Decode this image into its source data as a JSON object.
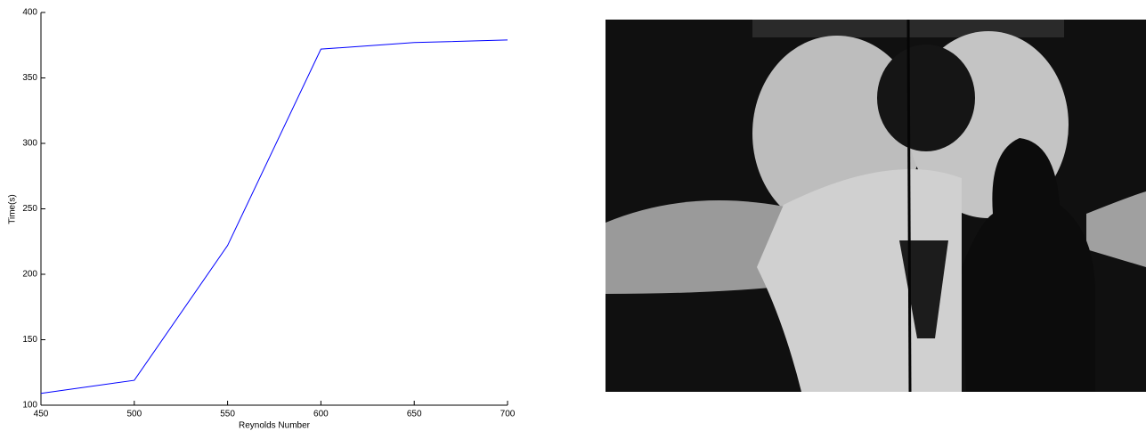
{
  "chart_data": {
    "type": "line",
    "x_label": "Reynolds Number",
    "y_label": "Time(s)",
    "x": [
      450,
      500,
      550,
      600,
      650,
      700
    ],
    "values": [
      109,
      119,
      222,
      372,
      377,
      379
    ],
    "color": "#0000ff",
    "xlim": [
      450,
      700
    ],
    "xticks": [
      450,
      500,
      550,
      600,
      650,
      700
    ],
    "ylim": [
      100,
      400
    ],
    "yticks": [
      100,
      150,
      200,
      250,
      300,
      350,
      400
    ],
    "grid": false
  }
}
